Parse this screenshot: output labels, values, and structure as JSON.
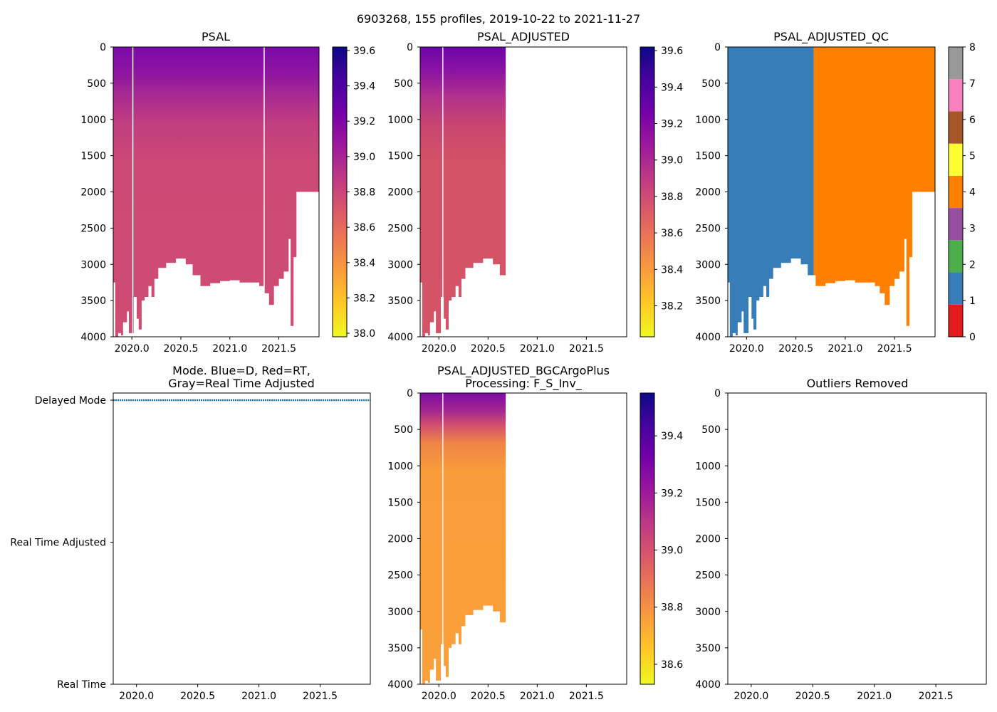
{
  "figure_title": "6903268, 155 profiles, 2019-10-22 to 2021-11-27",
  "colors": {
    "psal_plasma": [
      "#f0f921",
      "#fdca26",
      "#fb9f3a",
      "#ed7953",
      "#d8576b",
      "#bd3786",
      "#9c179e",
      "#7201a8",
      "#46039f",
      "#0d0887"
    ],
    "qc_palette": [
      "#e41a1c",
      "#377eb8",
      "#4daf4a",
      "#984ea3",
      "#ff7f00",
      "#ffff33",
      "#a65628",
      "#f781bf",
      "#999999"
    ],
    "mode_line": "#1f77b4"
  },
  "chart_data": [
    {
      "id": "psal",
      "type": "heatmap",
      "title": "PSAL",
      "x_ticks": [
        "2020.0",
        "2020.5",
        "2021.0",
        "2021.5"
      ],
      "x_tick_values": [
        2020.0,
        2020.5,
        2021.0,
        2021.5
      ],
      "xlim": [
        2019.81,
        2021.91
      ],
      "y_ticks": [
        "0",
        "500",
        "1000",
        "1500",
        "2000",
        "2500",
        "3000",
        "3500",
        "4000"
      ],
      "ylim": [
        4000,
        0
      ],
      "colorbar": {
        "ticks": [
          "38.0",
          "38.2",
          "38.4",
          "38.6",
          "38.8",
          "39.0",
          "39.2",
          "39.4",
          "39.6"
        ],
        "range": [
          37.98,
          39.62
        ]
      },
      "data_extent": [
        2019.81,
        2021.91
      ],
      "profile_gaps": [
        2020.01,
        2021.35
      ],
      "bottom_depth_profile": [
        [
          2019.81,
          3250
        ],
        [
          2019.83,
          4000
        ],
        [
          2019.86,
          3950
        ],
        [
          2019.89,
          3980
        ],
        [
          2019.91,
          3800
        ],
        [
          2019.95,
          3650
        ],
        [
          2019.97,
          3950
        ],
        [
          2020.02,
          3450
        ],
        [
          2020.05,
          3750
        ],
        [
          2020.07,
          3900
        ],
        [
          2020.1,
          3500
        ],
        [
          2020.13,
          3450
        ],
        [
          2020.17,
          3300
        ],
        [
          2020.2,
          3450
        ],
        [
          2020.23,
          3200
        ],
        [
          2020.27,
          3050
        ],
        [
          2020.35,
          2980
        ],
        [
          2020.45,
          2920
        ],
        [
          2020.55,
          3000
        ],
        [
          2020.62,
          3150
        ],
        [
          2020.7,
          3300
        ],
        [
          2020.8,
          3260
        ],
        [
          2020.9,
          3230
        ],
        [
          2021.0,
          3220
        ],
        [
          2021.1,
          3250
        ],
        [
          2021.2,
          3250
        ],
        [
          2021.3,
          3300
        ],
        [
          2021.35,
          3400
        ],
        [
          2021.4,
          3560
        ],
        [
          2021.45,
          3300
        ],
        [
          2021.5,
          3200
        ],
        [
          2021.55,
          3100
        ],
        [
          2021.6,
          2650
        ],
        [
          2021.62,
          3850
        ],
        [
          2021.65,
          2900
        ],
        [
          2021.68,
          2000
        ],
        [
          2021.91,
          1980
        ]
      ]
    },
    {
      "id": "psal_adjusted",
      "type": "heatmap",
      "title": "PSAL_ADJUSTED",
      "x_ticks": [
        "2020.0",
        "2020.5",
        "2021.0",
        "2021.5"
      ],
      "x_tick_values": [
        2020.0,
        2020.5,
        2021.0,
        2021.5
      ],
      "xlim": [
        2019.81,
        2021.91
      ],
      "y_ticks": [
        "0",
        "500",
        "1000",
        "1500",
        "2000",
        "2500",
        "3000",
        "3500",
        "4000"
      ],
      "ylim": [
        4000,
        0
      ],
      "colorbar": {
        "ticks": [
          "38.2",
          "38.4",
          "38.6",
          "38.8",
          "39.0",
          "39.2",
          "39.4",
          "39.6"
        ],
        "range": [
          38.03,
          39.62
        ]
      },
      "data_extent": [
        2019.81,
        2020.68
      ],
      "profile_gaps": [
        2020.04
      ],
      "bottom_depth_profile": [
        [
          2019.81,
          3250
        ],
        [
          2019.83,
          4000
        ],
        [
          2019.86,
          3950
        ],
        [
          2019.89,
          3980
        ],
        [
          2019.91,
          3800
        ],
        [
          2019.95,
          3650
        ],
        [
          2019.97,
          3950
        ],
        [
          2020.02,
          3450
        ],
        [
          2020.05,
          3750
        ],
        [
          2020.07,
          3900
        ],
        [
          2020.1,
          3500
        ],
        [
          2020.13,
          3450
        ],
        [
          2020.17,
          3300
        ],
        [
          2020.2,
          3450
        ],
        [
          2020.23,
          3200
        ],
        [
          2020.27,
          3050
        ],
        [
          2020.35,
          2980
        ],
        [
          2020.45,
          2920
        ],
        [
          2020.55,
          3000
        ],
        [
          2020.62,
          3150
        ],
        [
          2020.68,
          3300
        ]
      ]
    },
    {
      "id": "psal_adjusted_qc",
      "type": "heatmap",
      "title": "PSAL_ADJUSTED_QC",
      "x_ticks": [
        "2020.0",
        "2020.5",
        "2021.0",
        "2021.5"
      ],
      "x_tick_values": [
        2020.0,
        2020.5,
        2021.0,
        2021.5
      ],
      "xlim": [
        2019.81,
        2021.91
      ],
      "y_ticks": [
        "0",
        "500",
        "1000",
        "1500",
        "2000",
        "2500",
        "3000",
        "3500",
        "4000"
      ],
      "ylim": [
        4000,
        0
      ],
      "colorbar": {
        "ticks": [
          "0",
          "1",
          "2",
          "3",
          "4",
          "5",
          "6",
          "7",
          "8"
        ],
        "range": [
          0,
          8
        ]
      },
      "qc_regions": [
        {
          "x_from": 2019.81,
          "x_to": 2020.68,
          "flag": 1
        },
        {
          "x_from": 2020.68,
          "x_to": 2021.91,
          "flag": 4
        }
      ],
      "data_extent": [
        2019.81,
        2021.91
      ],
      "bottom_depth_profile": [
        [
          2019.81,
          3250
        ],
        [
          2019.83,
          4000
        ],
        [
          2019.86,
          3950
        ],
        [
          2019.89,
          3980
        ],
        [
          2019.91,
          3800
        ],
        [
          2019.95,
          3650
        ],
        [
          2019.97,
          3950
        ],
        [
          2020.02,
          3450
        ],
        [
          2020.05,
          3750
        ],
        [
          2020.07,
          3900
        ],
        [
          2020.1,
          3500
        ],
        [
          2020.13,
          3450
        ],
        [
          2020.17,
          3300
        ],
        [
          2020.2,
          3450
        ],
        [
          2020.23,
          3200
        ],
        [
          2020.27,
          3050
        ],
        [
          2020.35,
          2980
        ],
        [
          2020.45,
          2920
        ],
        [
          2020.55,
          3000
        ],
        [
          2020.62,
          3150
        ],
        [
          2020.7,
          3300
        ],
        [
          2020.8,
          3260
        ],
        [
          2020.9,
          3230
        ],
        [
          2021.0,
          3220
        ],
        [
          2021.1,
          3250
        ],
        [
          2021.2,
          3250
        ],
        [
          2021.3,
          3300
        ],
        [
          2021.35,
          3400
        ],
        [
          2021.4,
          3560
        ],
        [
          2021.45,
          3300
        ],
        [
          2021.5,
          3200
        ],
        [
          2021.55,
          3100
        ],
        [
          2021.6,
          2650
        ],
        [
          2021.62,
          3850
        ],
        [
          2021.65,
          2900
        ],
        [
          2021.68,
          2000
        ],
        [
          2021.91,
          1980
        ]
      ]
    },
    {
      "id": "mode",
      "type": "line",
      "title": "Mode. Blue=D, Red=RT,",
      "title_line2": "Gray=Real Time Adjusted",
      "x_ticks": [
        "2020.0",
        "2020.5",
        "2021.0",
        "2021.5"
      ],
      "x_tick_values": [
        2020.0,
        2020.5,
        2021.0,
        2021.5
      ],
      "xlim": [
        2019.81,
        2021.91
      ],
      "y_ticks": [
        "Delayed Mode",
        "Real Time Adjusted",
        "Real Time"
      ],
      "y_tick_values": [
        0,
        1,
        2
      ],
      "series": [
        {
          "name": "D",
          "x_range": [
            2019.81,
            2021.91
          ],
          "value": "Delayed Mode"
        }
      ]
    },
    {
      "id": "psal_bgc",
      "type": "heatmap",
      "title": "PSAL_ADJUSTED_BGCArgoPlus",
      "title_line2": "Processing: F_S_Inv_",
      "x_ticks": [
        "2020.0",
        "2020.5",
        "2021.0",
        "2021.5"
      ],
      "x_tick_values": [
        2020.0,
        2020.5,
        2021.0,
        2021.5
      ],
      "xlim": [
        2019.81,
        2021.91
      ],
      "y_ticks": [
        "0",
        "500",
        "1000",
        "1500",
        "2000",
        "2500",
        "3000",
        "3500",
        "4000"
      ],
      "ylim": [
        4000,
        0
      ],
      "colorbar": {
        "ticks": [
          "38.6",
          "38.8",
          "39.0",
          "39.2",
          "39.4"
        ],
        "range": [
          38.53,
          39.55
        ]
      },
      "data_extent": [
        2019.81,
        2020.68
      ],
      "profile_gaps": [
        2020.04
      ],
      "bottom_depth_profile": [
        [
          2019.81,
          3250
        ],
        [
          2019.83,
          4000
        ],
        [
          2019.86,
          3950
        ],
        [
          2019.89,
          3980
        ],
        [
          2019.91,
          3800
        ],
        [
          2019.95,
          3650
        ],
        [
          2019.97,
          3950
        ],
        [
          2020.02,
          3450
        ],
        [
          2020.05,
          3750
        ],
        [
          2020.07,
          3900
        ],
        [
          2020.1,
          3500
        ],
        [
          2020.13,
          3450
        ],
        [
          2020.17,
          3300
        ],
        [
          2020.2,
          3450
        ],
        [
          2020.23,
          3200
        ],
        [
          2020.27,
          3050
        ],
        [
          2020.35,
          2980
        ],
        [
          2020.45,
          2920
        ],
        [
          2020.55,
          3000
        ],
        [
          2020.62,
          3150
        ],
        [
          2020.68,
          3300
        ]
      ]
    },
    {
      "id": "outliers",
      "type": "scatter",
      "title": "Outliers Removed",
      "x_ticks": [
        "2020.0",
        "2020.5",
        "2021.0",
        "2021.5"
      ],
      "x_tick_values": [
        2020.0,
        2020.5,
        2021.0,
        2021.5
      ],
      "xlim": [
        2019.81,
        2021.91
      ],
      "y_ticks": [
        "0",
        "500",
        "1000",
        "1500",
        "2000",
        "2500",
        "3000",
        "3500",
        "4000"
      ],
      "ylim": [
        4000,
        0
      ],
      "points": []
    }
  ]
}
